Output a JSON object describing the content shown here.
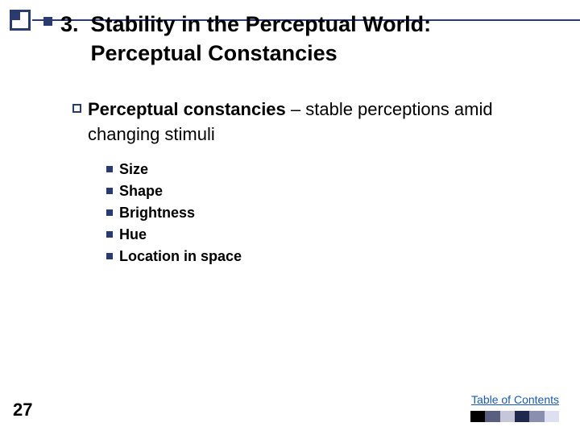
{
  "heading": {
    "number": "3.",
    "line1": "Stability in the Perceptual World:",
    "line2": "Perceptual Constancies"
  },
  "sub": {
    "bold": "Perceptual constancies",
    "rest": " – stable perceptions amid changing stimuli"
  },
  "items": {
    "i0": "Size",
    "i1": "Shape",
    "i2": "Brightness",
    "i3": "Hue",
    "i4": "Location in space"
  },
  "page_number": "27",
  "toc_label": "Table of Contents",
  "stripe_colors": {
    "c0": "#000000",
    "c1": "#5a5f80",
    "c2": "#c5c7d8",
    "c3": "#20284d",
    "c4": "#8a8fb0",
    "c5": "#dedff0"
  }
}
